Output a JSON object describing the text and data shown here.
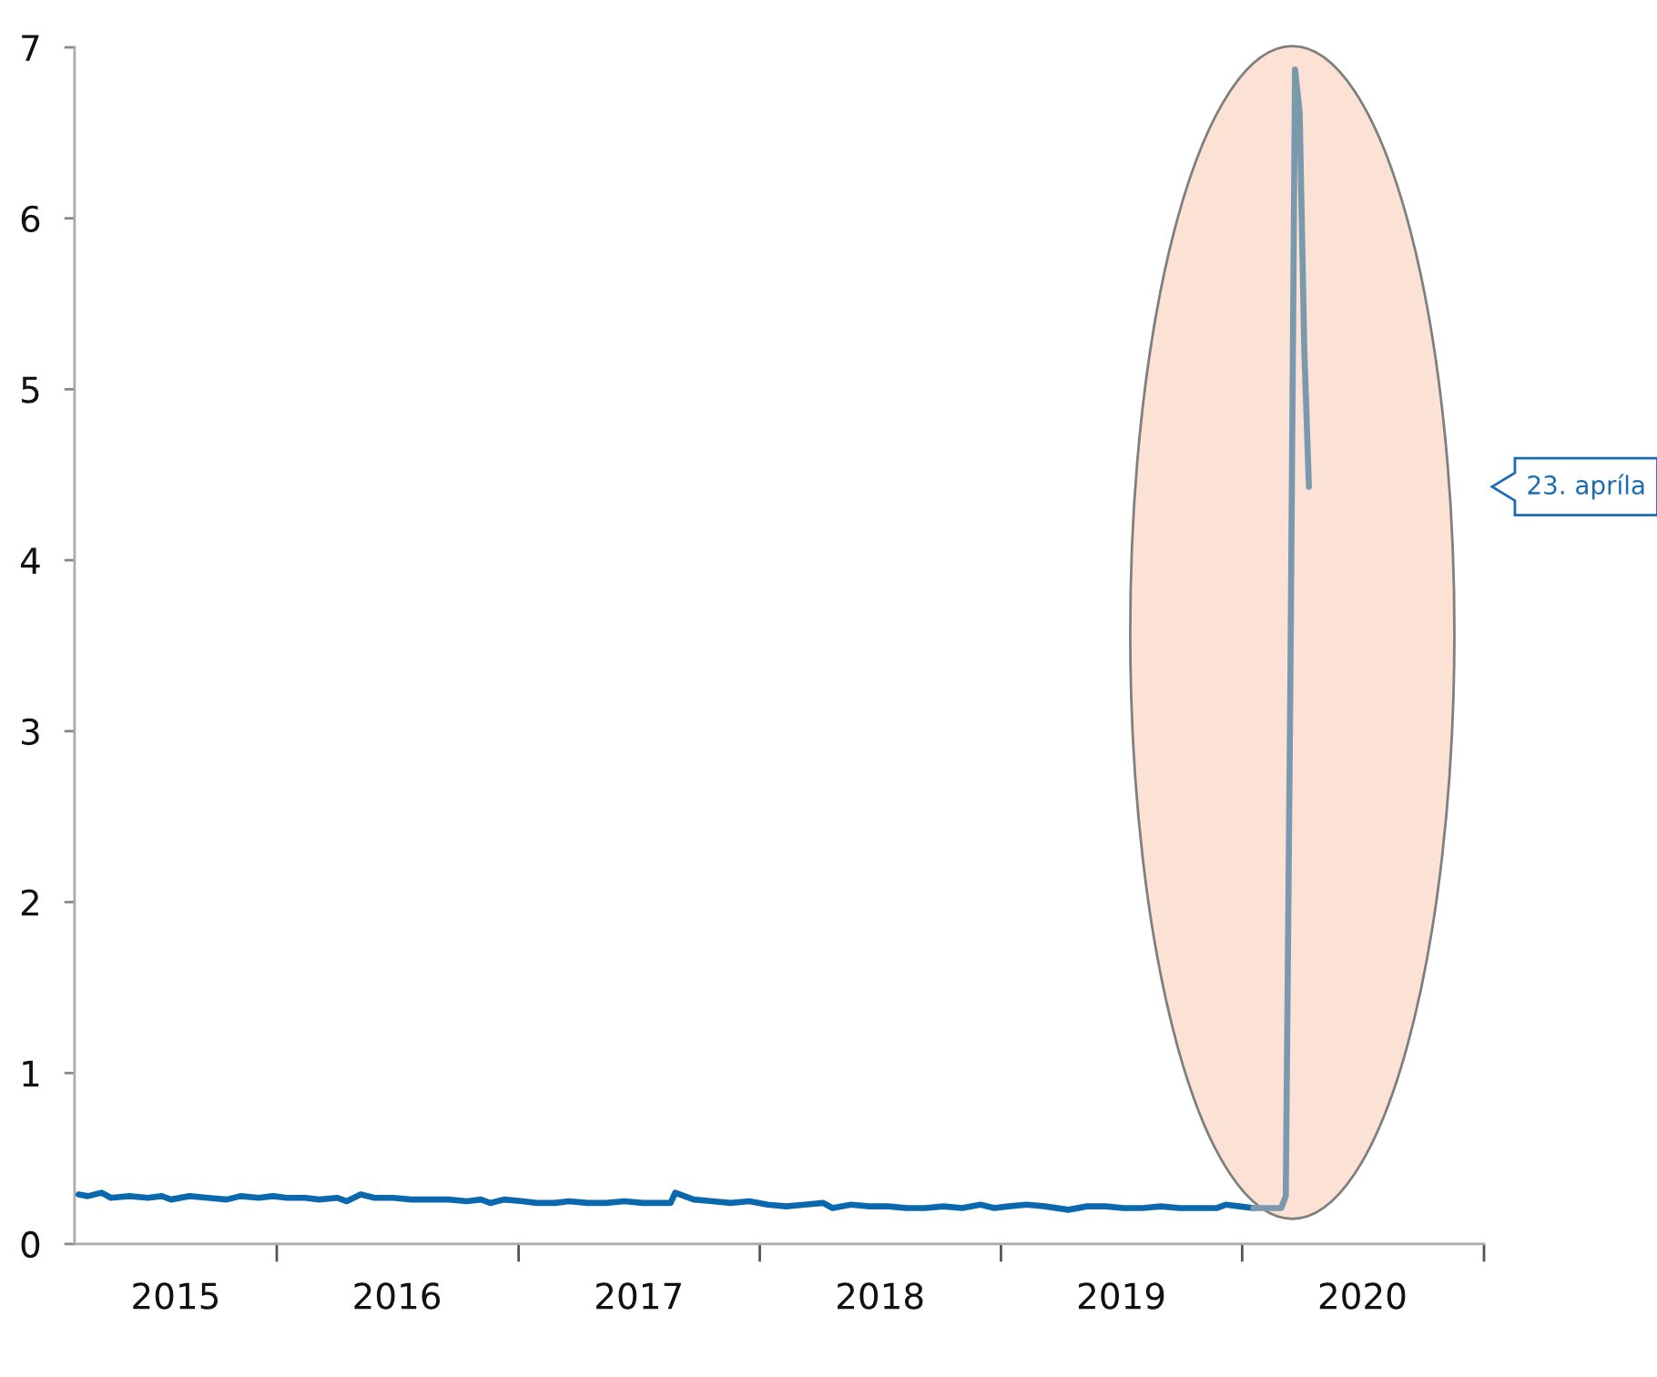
{
  "chart_data": {
    "type": "line",
    "xlim": [
      "2015-03-01",
      "2021-01-01"
    ],
    "ylim": [
      0,
      7
    ],
    "yticks": [
      0,
      1,
      2,
      3,
      4,
      5,
      6,
      7
    ],
    "xticks": [
      {
        "value": "2015-08-01",
        "label": "2015"
      },
      {
        "value": "2016-01-01",
        "label": null
      },
      {
        "value": "2016-07-01",
        "label": "2016"
      },
      {
        "value": "2017-01-01",
        "label": null
      },
      {
        "value": "2017-07-02",
        "label": "2017"
      },
      {
        "value": "2018-01-01",
        "label": null
      },
      {
        "value": "2018-07-02",
        "label": "2018"
      },
      {
        "value": "2019-01-01",
        "label": null
      },
      {
        "value": "2019-07-02",
        "label": "2019"
      },
      {
        "value": "2020-01-01",
        "label": null
      },
      {
        "value": "2020-07-01",
        "label": "2020"
      },
      {
        "value": "2021-01-01",
        "label": null
      }
    ],
    "series": [
      {
        "color": "#0a69ae",
        "x": [
          "2015-03-07",
          "2015-03-21",
          "2015-04-11",
          "2015-04-25",
          "2015-05-23",
          "2015-06-20",
          "2015-07-11",
          "2015-07-25",
          "2015-08-22",
          "2015-09-19",
          "2015-10-17",
          "2015-11-07",
          "2015-12-05",
          "2015-12-26",
          "2016-01-16",
          "2016-02-13",
          "2016-03-05",
          "2016-04-02",
          "2016-04-16",
          "2016-05-07",
          "2016-05-28",
          "2016-06-25",
          "2016-07-23",
          "2016-08-20",
          "2016-09-17",
          "2016-10-15",
          "2016-11-05",
          "2016-11-19",
          "2016-12-10",
          "2017-01-07",
          "2017-01-28",
          "2017-02-25",
          "2017-03-18",
          "2017-04-15",
          "2017-05-13",
          "2017-06-10",
          "2017-07-08",
          "2017-08-05",
          "2017-08-19",
          "2017-08-26",
          "2017-09-23",
          "2017-10-21",
          "2017-11-18",
          "2017-12-16",
          "2018-01-13",
          "2018-02-10",
          "2018-03-10",
          "2018-04-07",
          "2018-04-21",
          "2018-05-19",
          "2018-06-16",
          "2018-07-14",
          "2018-08-11",
          "2018-09-08",
          "2018-10-06",
          "2018-11-03",
          "2018-12-01",
          "2018-12-22",
          "2019-01-12",
          "2019-02-09",
          "2019-03-09",
          "2019-04-13",
          "2019-05-11",
          "2019-06-08",
          "2019-07-06",
          "2019-08-03",
          "2019-08-31",
          "2019-09-28",
          "2019-10-26",
          "2019-11-23",
          "2019-12-07",
          "2019-12-28",
          "2020-01-18"
        ],
        "values": [
          0.29,
          0.28,
          0.3,
          0.27,
          0.28,
          0.27,
          0.28,
          0.26,
          0.28,
          0.27,
          0.26,
          0.28,
          0.27,
          0.28,
          0.27,
          0.27,
          0.26,
          0.27,
          0.25,
          0.29,
          0.27,
          0.27,
          0.26,
          0.26,
          0.26,
          0.25,
          0.26,
          0.24,
          0.26,
          0.25,
          0.24,
          0.24,
          0.25,
          0.24,
          0.24,
          0.25,
          0.24,
          0.24,
          0.24,
          0.3,
          0.26,
          0.25,
          0.24,
          0.25,
          0.23,
          0.22,
          0.23,
          0.24,
          0.21,
          0.23,
          0.22,
          0.22,
          0.21,
          0.21,
          0.22,
          0.21,
          0.23,
          0.21,
          0.22,
          0.23,
          0.22,
          0.2,
          0.22,
          0.22,
          0.21,
          0.21,
          0.22,
          0.21,
          0.21,
          0.21,
          0.23,
          0.22,
          0.21
        ]
      },
      {
        "color": "#7b99ad",
        "x": [
          "2020-01-18",
          "2020-02-15",
          "2020-02-29",
          "2020-03-07",
          "2020-03-14",
          "2020-03-21",
          "2020-03-28",
          "2020-04-04",
          "2020-04-11"
        ],
        "values": [
          0.21,
          0.21,
          0.21,
          0.28,
          3.31,
          6.87,
          6.62,
          5.24,
          4.43
        ]
      }
    ],
    "annotations": [
      "23. apríla"
    ]
  }
}
